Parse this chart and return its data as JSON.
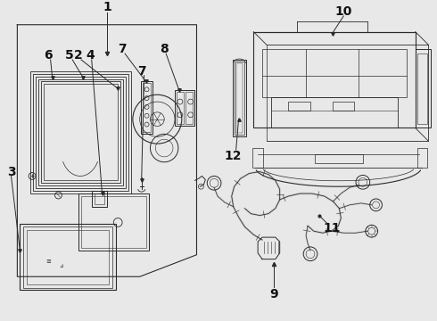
{
  "bg_color": "#e8e8e8",
  "line_color": "#2a2a2a",
  "label_color": "#111111",
  "fig_width": 4.9,
  "fig_height": 3.6,
  "dpi": 100
}
